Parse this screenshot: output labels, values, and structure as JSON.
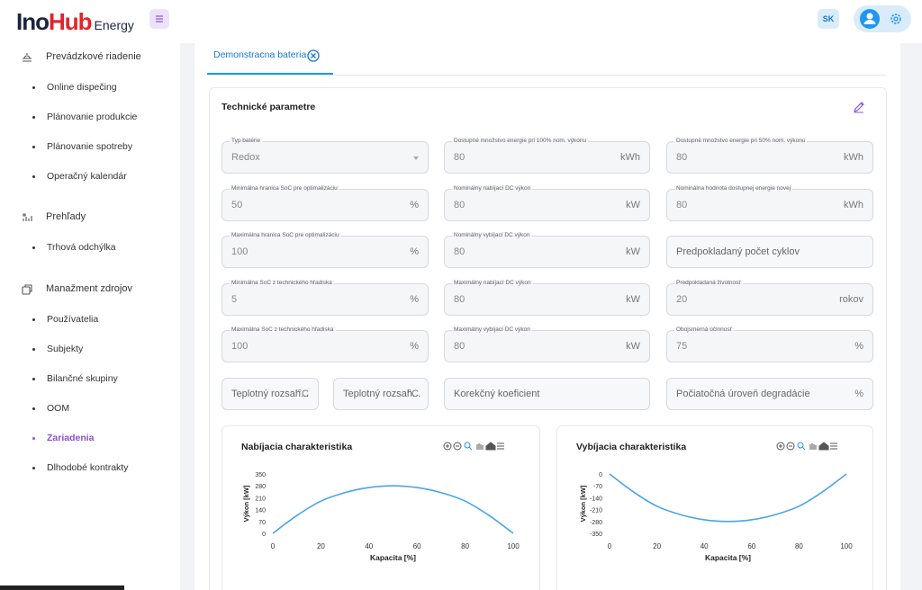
{
  "header": {
    "logo": {
      "primary": "Ino",
      "accent": "Hub",
      "suffix": "Energy"
    },
    "user_initials": "SK"
  },
  "sidebar": {
    "sections": [
      {
        "title": "Prevádzkové riadenie",
        "items": [
          {
            "label": "Online dispečing"
          },
          {
            "label": "Plánovanie produkcie"
          },
          {
            "label": "Plánovanie spotreby"
          },
          {
            "label": "Operačný kalendár"
          }
        ]
      },
      {
        "title": "Prehľady",
        "items": [
          {
            "label": "Trhová odchýlka"
          }
        ]
      },
      {
        "title": "Manažment zdrojov",
        "items": [
          {
            "label": "Používatelia"
          },
          {
            "label": "Subjekty"
          },
          {
            "label": "Bilančné skupiny"
          },
          {
            "label": "OOM"
          },
          {
            "label": "Zariadenia",
            "active": true
          },
          {
            "label": "Dlhodobé kontrakty"
          }
        ]
      }
    ]
  },
  "tab": {
    "label": "Demonstracna bateria"
  },
  "card": {
    "title": "Technické parametre"
  },
  "form": {
    "rows": [
      [
        {
          "label": "Typ batérie",
          "value": "Redox",
          "select": true
        },
        {
          "label": "Dostupné množstvo energie pri 100% nom. výkonu",
          "value": "80",
          "unit": "kWh"
        },
        {
          "label": "Dostupné množstvo energie pri 50% nom. výkonu",
          "value": "80",
          "unit": "kWh"
        }
      ],
      [
        {
          "label": "Minimálna hranica SoC pre optimalizáciu",
          "value": "50",
          "unit": "%"
        },
        {
          "label": "Nominálny nabíjací DC výkon",
          "value": "80",
          "unit": "kW"
        },
        {
          "label": "Nominálna hodnota dostupnej energie novej",
          "value": "80",
          "unit": "kWh"
        }
      ],
      [
        {
          "label": "Maximálna hranica SoC pre optimalizáciu",
          "value": "100",
          "unit": "%"
        },
        {
          "label": "Nominálny vybíjací DC výkon",
          "value": "80",
          "unit": "kW"
        },
        {
          "placeholder": "Predpokladaný počet cyklov"
        }
      ],
      [
        {
          "label": "Minimálna SoC z technického hľadiska",
          "value": "5",
          "unit": "%"
        },
        {
          "label": "Maximálny nabíjací DC výkon",
          "value": "80",
          "unit": "kW"
        },
        {
          "label": "Predpokladaná životnosť",
          "value": "20",
          "unit": "rokov"
        }
      ],
      [
        {
          "label": "Maximálna SoC z technického hľadiska",
          "value": "100",
          "unit": "%"
        },
        {
          "label": "Maximálny vybíjací DC výkon",
          "value": "80",
          "unit": "kW"
        },
        {
          "label": "Obojsmerná účinnosť",
          "value": "75",
          "unit": "%"
        }
      ],
      [
        {
          "placeholder": "Teplotný rozsah...",
          "unit": "°C"
        },
        {
          "placeholder": "Teplotný rozsah...",
          "unit": "°C"
        },
        {
          "placeholder": "Korekčný koeficient"
        },
        {
          "placeholder": "Počiatočná úroveň degradácie",
          "unit": "%"
        }
      ]
    ]
  },
  "charts": [
    {
      "type": "line",
      "title": "Nabíjacia charakteristika",
      "xlabel": "Kapacita [%]",
      "ylabel": "Výkon [kW]",
      "color": "#4aa3e8",
      "x": [
        0,
        10,
        20,
        30,
        40,
        50,
        60,
        70,
        80,
        90,
        100
      ],
      "values": [
        0,
        105,
        190,
        240,
        270,
        280,
        270,
        240,
        190,
        105,
        0
      ],
      "xlim": [
        0,
        100
      ],
      "ylim": [
        0,
        350
      ],
      "xticks": [
        0,
        20,
        40,
        60,
        80,
        100
      ],
      "yticks": [
        0,
        70,
        140,
        210,
        280,
        350
      ]
    },
    {
      "type": "line",
      "title": "Vybíjacia charakteristika",
      "xlabel": "Kapacita [%]",
      "ylabel": "Výkon [kW]",
      "color": "#4aa3e8",
      "x": [
        0,
        10,
        20,
        30,
        40,
        50,
        60,
        70,
        80,
        90,
        100
      ],
      "values": [
        0,
        -105,
        -190,
        -240,
        -270,
        -280,
        -270,
        -240,
        -190,
        -105,
        0
      ],
      "xlim": [
        0,
        100
      ],
      "ylim": [
        -350,
        0
      ],
      "xticks": [
        0,
        20,
        40,
        60,
        80,
        100
      ],
      "yticks": [
        0,
        -70,
        -140,
        -210,
        -280,
        -350
      ]
    }
  ]
}
